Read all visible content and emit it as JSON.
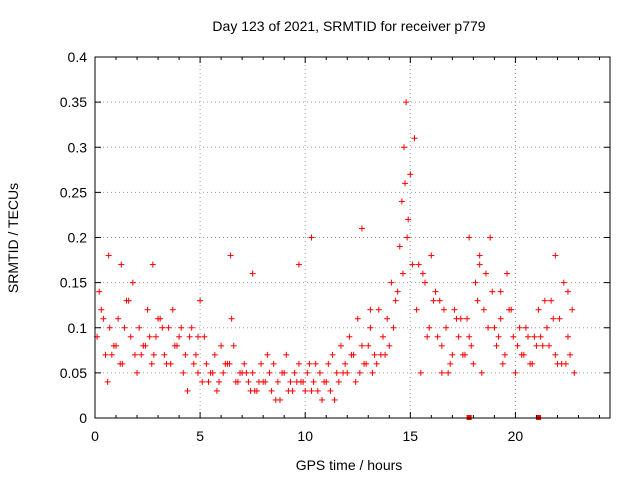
{
  "chart_data": {
    "type": "scatter",
    "title": "Day 123 of 2021, SRMTID for receiver p779",
    "xlabel": "GPS time / hours",
    "ylabel": "SRMTID / TECUs",
    "xlim": [
      0,
      24.5
    ],
    "ylim": [
      0,
      0.4
    ],
    "x_ticks": [
      0,
      5,
      10,
      15,
      20
    ],
    "x_tick_labels": [
      "0",
      "5",
      "10",
      "15",
      "20"
    ],
    "y_ticks": [
      0,
      0.05,
      0.1,
      0.15,
      0.2,
      0.25,
      0.3,
      0.35,
      0.4
    ],
    "y_tick_labels": [
      "0",
      "0.05",
      "0.1",
      "0.15",
      "0.2",
      "0.25",
      "0.3",
      "0.35",
      "0.4"
    ],
    "grid": true,
    "marker": "plus",
    "color": "#ff0000",
    "series": [
      {
        "name": "SRMTID",
        "x": [
          0.1,
          0.3,
          0.5,
          0.7,
          0.9,
          1.1,
          1.3,
          1.5,
          1.7,
          1.9,
          2.1,
          2.3,
          2.5,
          2.7,
          2.9,
          3.1,
          3.3,
          3.5,
          3.7,
          3.9,
          4.1,
          4.3,
          4.5,
          4.7,
          4.9,
          5.1,
          5.3,
          5.5,
          5.7,
          5.9,
          6.1,
          6.3,
          6.5,
          6.7,
          6.9,
          7.1,
          7.3,
          7.5,
          7.7,
          7.9,
          8.1,
          8.3,
          8.5,
          8.7,
          8.9,
          9.1,
          9.3,
          9.5,
          9.7,
          9.9,
          10.1,
          10.3,
          10.5,
          10.7,
          10.9,
          11.1,
          11.3,
          11.5,
          11.7,
          11.9,
          12.1,
          12.3,
          12.5,
          12.7,
          12.9,
          13.1,
          13.3,
          13.5,
          13.7,
          13.9,
          14.1,
          14.3,
          14.5,
          14.6,
          14.7,
          14.8,
          14.9,
          15.0,
          15.1,
          15.3,
          15.5,
          15.7,
          15.9,
          16.1,
          16.3,
          16.5,
          16.7,
          16.9,
          17.1,
          17.3,
          17.5,
          17.7,
          17.9,
          18.1,
          18.3,
          18.5,
          18.7,
          18.9,
          19.1,
          19.3,
          19.5,
          19.7,
          19.9,
          20.1,
          20.3,
          20.5,
          20.7,
          20.9,
          21.1,
          21.3,
          21.5,
          21.7,
          21.9,
          22.1,
          22.3,
          22.5,
          22.7,
          0.2,
          0.6,
          1.0,
          1.4,
          1.8,
          2.2,
          2.6,
          3.0,
          3.4,
          3.8,
          4.2,
          4.6,
          5.0,
          5.4,
          5.8,
          6.2,
          6.6,
          7.0,
          7.4,
          7.8,
          8.2,
          8.6,
          9.0,
          9.4,
          9.8,
          10.2,
          10.6,
          11.0,
          11.4,
          11.8,
          12.2,
          12.6,
          13.0,
          13.4,
          13.8,
          14.2,
          14.4,
          14.65,
          14.75,
          14.85,
          15.2,
          15.6,
          16.0,
          16.4,
          16.8,
          17.2,
          17.6,
          18.0,
          18.4,
          18.8,
          19.2,
          19.6,
          20.0,
          20.4,
          20.8,
          21.2,
          21.6,
          22.0,
          22.4,
          22.8,
          0.4,
          0.8,
          1.2,
          1.6,
          2.0,
          2.4,
          2.8,
          3.2,
          3.6,
          4.0,
          4.4,
          4.8,
          5.2,
          5.6,
          6.0,
          6.4,
          6.8,
          7.2,
          7.6,
          8.0,
          8.4,
          8.8,
          9.2,
          9.6,
          10.0,
          10.4,
          10.8,
          11.2,
          11.6,
          12.0,
          12.4,
          12.8,
          13.2,
          13.6,
          14.0,
          15.4,
          15.8,
          16.2,
          16.6,
          17.0,
          17.4,
          17.8,
          18.2,
          18.6,
          19.0,
          19.4,
          19.8,
          20.2,
          20.6,
          21.0,
          21.4,
          21.8,
          22.2,
          22.6,
          9.7,
          6.45,
          1.25,
          0.65,
          2.75,
          4.9,
          7.5,
          10.3,
          12.7,
          13.1,
          16.5,
          17.8,
          18.3,
          19.3,
          21.9,
          22.5
        ],
        "y": [
          0.09,
          0.12,
          0.07,
          0.1,
          0.08,
          0.11,
          0.06,
          0.13,
          0.09,
          0.07,
          0.1,
          0.08,
          0.12,
          0.06,
          0.09,
          0.11,
          0.07,
          0.1,
          0.12,
          0.08,
          0.1,
          0.07,
          0.09,
          0.06,
          0.05,
          0.04,
          0.06,
          0.05,
          0.07,
          0.04,
          0.05,
          0.06,
          0.11,
          0.04,
          0.05,
          0.06,
          0.04,
          0.05,
          0.03,
          0.06,
          0.04,
          0.05,
          0.06,
          0.04,
          0.05,
          0.07,
          0.04,
          0.05,
          0.06,
          0.04,
          0.05,
          0.03,
          0.06,
          0.05,
          0.04,
          0.06,
          0.07,
          0.05,
          0.08,
          0.06,
          0.09,
          0.07,
          0.11,
          0.08,
          0.06,
          0.1,
          0.07,
          0.12,
          0.09,
          0.11,
          0.15,
          0.13,
          0.19,
          0.24,
          0.3,
          0.35,
          0.22,
          0.27,
          0.17,
          0.12,
          0.05,
          0.15,
          0.1,
          0.13,
          0.09,
          0.08,
          0.1,
          0.06,
          0.12,
          0.09,
          0.07,
          0.11,
          0.08,
          0.15,
          0.18,
          0.12,
          0.1,
          0.14,
          0.08,
          0.11,
          0.07,
          0.12,
          0.09,
          0.08,
          0.07,
          0.1,
          0.06,
          0.09,
          0.12,
          0.08,
          0.1,
          0.13,
          0.07,
          0.11,
          0.15,
          0.09,
          0.12,
          0.14,
          0.04,
          0.08,
          0.1,
          0.15,
          0.07,
          0.09,
          0.11,
          0.06,
          0.08,
          0.05,
          0.1,
          0.13,
          0.04,
          0.03,
          0.06,
          0.08,
          0.05,
          0.03,
          0.04,
          0.07,
          0.02,
          0.05,
          0.03,
          0.04,
          0.06,
          0.03,
          0.04,
          0.02,
          0.05,
          0.07,
          0.05,
          0.08,
          0.06,
          0.07,
          0.1,
          0.14,
          0.16,
          0.26,
          0.2,
          0.31,
          0.16,
          0.18,
          0.13,
          0.05,
          0.11,
          0.07,
          0.06,
          0.05,
          0.2,
          0.09,
          0.16,
          0.05,
          0.07,
          0.06,
          0.09,
          0.08,
          0.06,
          0.06,
          0.05,
          0.11,
          0.07,
          0.06,
          0.13,
          0.05,
          0.08,
          0.07,
          0.1,
          0.06,
          0.09,
          0.03,
          0.07,
          0.09,
          0.05,
          0.08,
          0.06,
          0.04,
          0.05,
          0.03,
          0.04,
          0.03,
          0.02,
          0.03,
          0.04,
          0.03,
          0.04,
          0.02,
          0.03,
          0.04,
          0.05,
          0.04,
          0.06,
          0.05,
          0.07,
          0.08,
          0.17,
          0.09,
          0.14,
          0.12,
          0.07,
          0.11,
          0.09,
          0.13,
          0.16,
          0.1,
          0.06,
          0.12,
          0.1,
          0.09,
          0.08,
          0.13,
          0.11,
          0.06,
          0.07,
          0.17,
          0.18,
          0.17,
          0.18,
          0.17,
          0.09,
          0.16,
          0.2,
          0.21,
          0.12,
          0.05,
          0.2,
          0.17,
          0.14,
          0.18,
          0.14
        ]
      }
    ],
    "axis_markers_x": [
      17.8,
      21.1
    ]
  }
}
